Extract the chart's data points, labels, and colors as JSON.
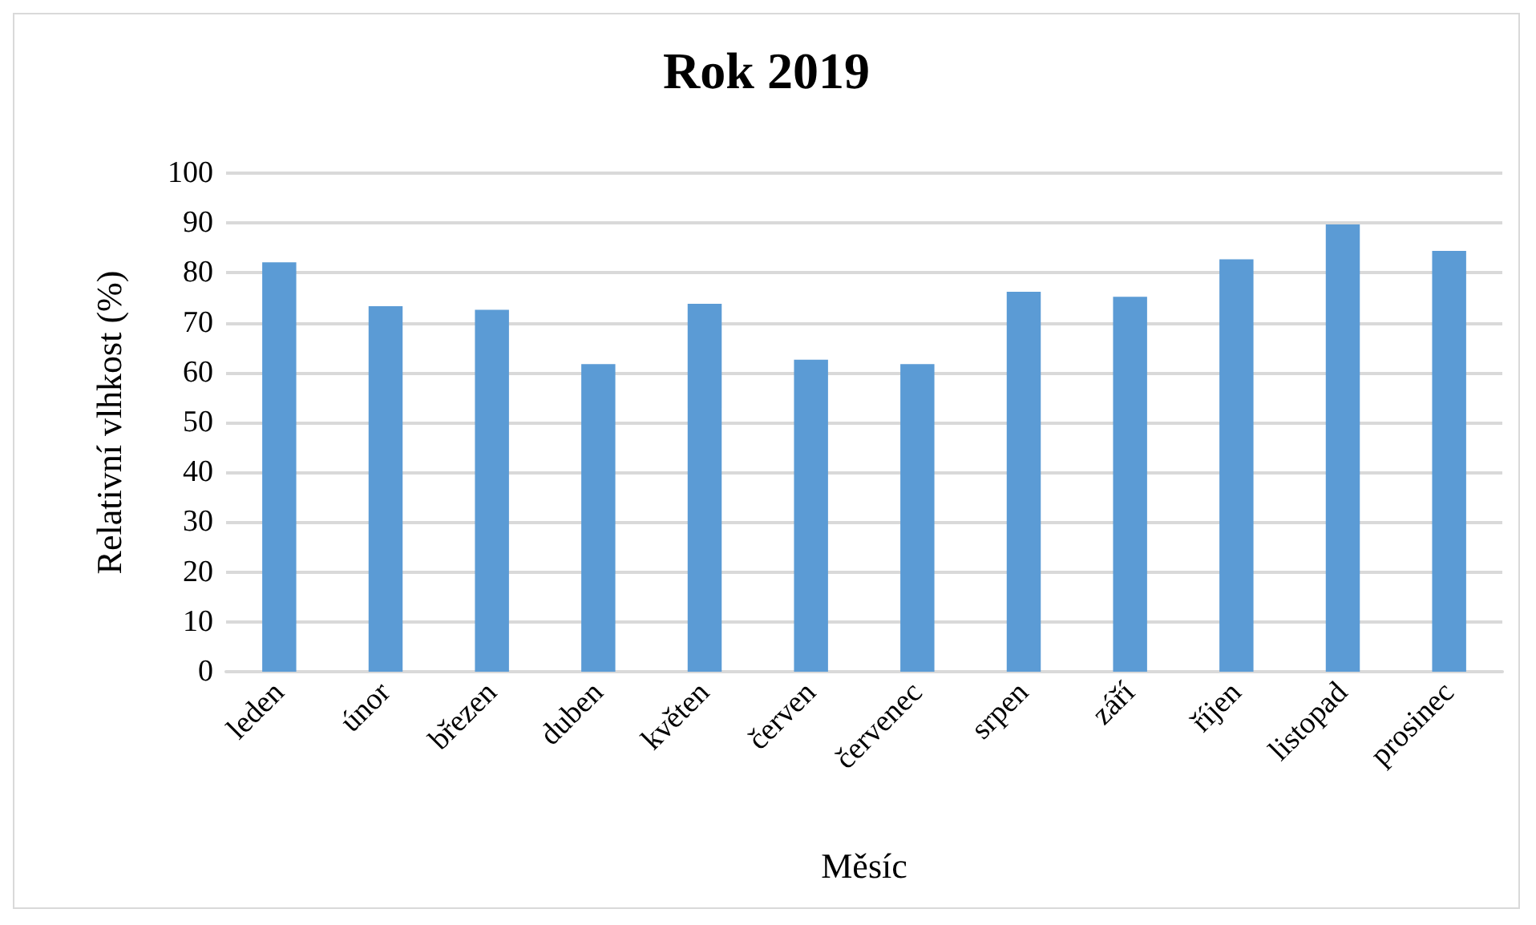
{
  "chart_data": {
    "type": "bar",
    "title": "Rok 2019",
    "xlabel": "Měsíc",
    "ylabel": "Relativní vlhkost (%)",
    "categories": [
      "leden",
      "únor",
      "březen",
      "duben",
      "květen",
      "červen",
      "červenec",
      "srpen",
      "září",
      "říjen",
      "listopad",
      "prosinec"
    ],
    "values": [
      82.1,
      73.3,
      72.6,
      61.7,
      73.8,
      62.6,
      61.7,
      76.2,
      75.2,
      82.7,
      89.7,
      84.4
    ],
    "color": "#5b9bd5",
    "ylim": [
      0,
      100
    ],
    "yticks": [
      0,
      10,
      20,
      30,
      40,
      50,
      60,
      70,
      80,
      90,
      100
    ],
    "grid": "y"
  }
}
